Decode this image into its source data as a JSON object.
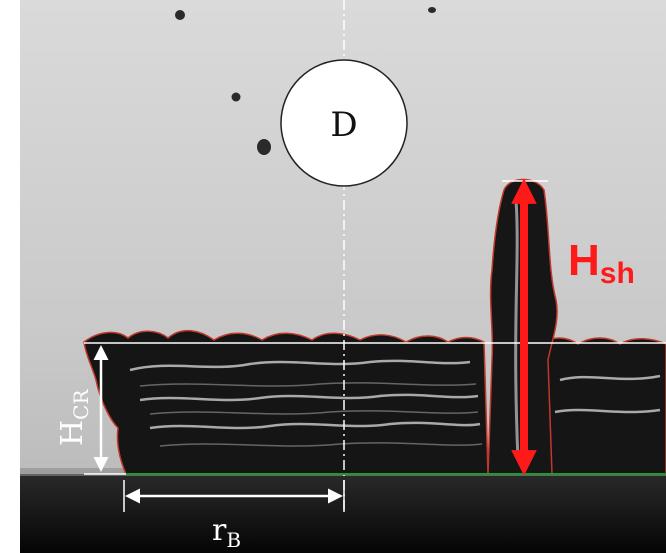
{
  "labels": {
    "droplet": "D",
    "crown_height_main": "H",
    "crown_height_sub": "CR",
    "sheet_height_main": "H",
    "sheet_height_sub": "sh",
    "base_radius_main": "r",
    "base_radius_sub": "B"
  },
  "colors": {
    "background_top": "#d8d8d8",
    "background_bottom": "#b8b8b8",
    "liquid": "#1c1c1c",
    "outline_red": "#c0392b",
    "sheet_arrow": "#ff1a1a",
    "dimension_white": "#ffffff",
    "baseline_green": "#1f9a2f",
    "centerline": "#ffffff"
  }
}
